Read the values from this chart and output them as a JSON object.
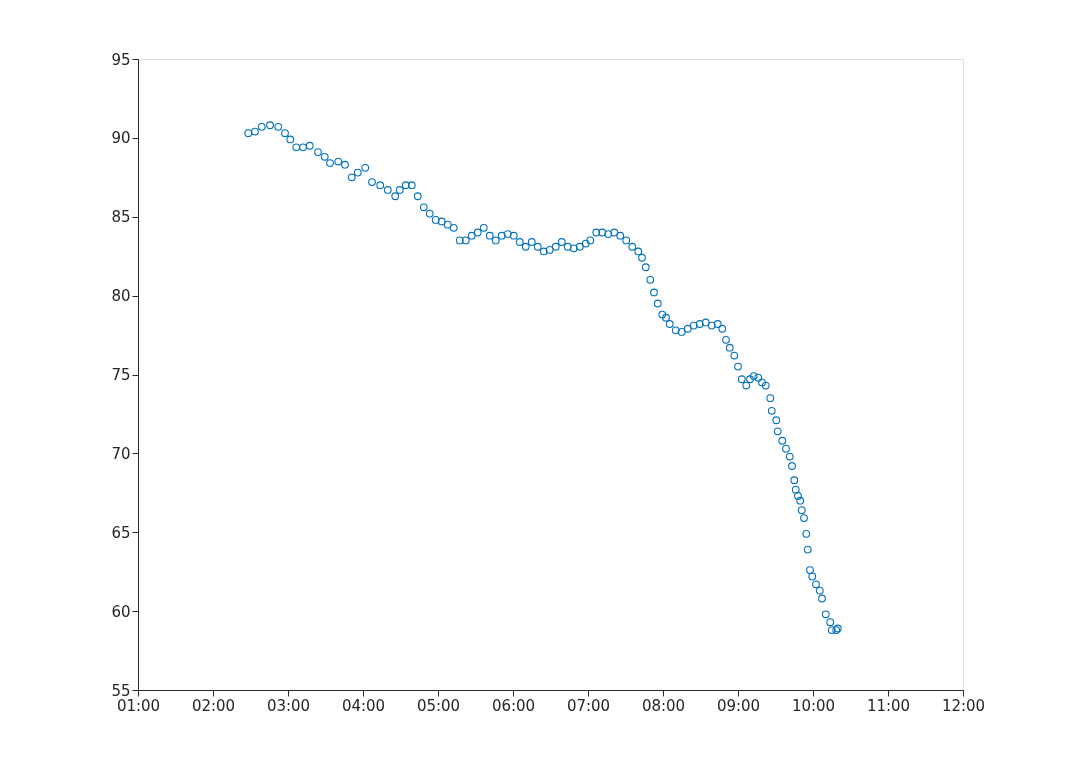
{
  "chart_data": {
    "type": "scatter",
    "marker": "circle",
    "grid": false,
    "xlim": [
      1,
      12
    ],
    "ylim": [
      55,
      95
    ],
    "xticks": [
      {
        "value": 1,
        "label": "01:00"
      },
      {
        "value": 2,
        "label": "02:00"
      },
      {
        "value": 3,
        "label": "03:00"
      },
      {
        "value": 4,
        "label": "04:00"
      },
      {
        "value": 5,
        "label": "05:00"
      },
      {
        "value": 6,
        "label": "06:00"
      },
      {
        "value": 7,
        "label": "07:00"
      },
      {
        "value": 8,
        "label": "08:00"
      },
      {
        "value": 9,
        "label": "09:00"
      },
      {
        "value": 10,
        "label": "10:00"
      },
      {
        "value": 11,
        "label": "11:00"
      },
      {
        "value": 12,
        "label": "12:00"
      }
    ],
    "yticks": [
      55,
      60,
      65,
      70,
      75,
      80,
      85,
      90,
      95
    ],
    "x": [
      2.47,
      2.56,
      2.65,
      2.76,
      2.87,
      2.96,
      3.03,
      3.11,
      3.2,
      3.29,
      3.4,
      3.49,
      3.56,
      3.67,
      3.76,
      3.85,
      3.93,
      4.03,
      4.12,
      4.23,
      4.33,
      4.43,
      4.49,
      4.57,
      4.65,
      4.73,
      4.81,
      4.89,
      4.97,
      5.05,
      5.13,
      5.21,
      5.29,
      5.37,
      5.45,
      5.53,
      5.61,
      5.69,
      5.77,
      5.85,
      5.93,
      6.01,
      6.09,
      6.17,
      6.25,
      6.33,
      6.41,
      6.49,
      6.57,
      6.65,
      6.73,
      6.81,
      6.89,
      6.97,
      7.03,
      7.11,
      7.19,
      7.27,
      7.35,
      7.43,
      7.51,
      7.59,
      7.67,
      7.72,
      7.77,
      7.83,
      7.88,
      7.93,
      7.99,
      8.04,
      8.09,
      8.17,
      8.25,
      8.33,
      8.41,
      8.49,
      8.57,
      8.65,
      8.73,
      8.79,
      8.84,
      8.89,
      8.95,
      9.0,
      9.05,
      9.11,
      9.16,
      9.21,
      9.27,
      9.32,
      9.37,
      9.43,
      9.45,
      9.51,
      9.53,
      9.59,
      9.64,
      9.69,
      9.72,
      9.75,
      9.77,
      9.8,
      9.83,
      9.85,
      9.88,
      9.91,
      9.93,
      9.96,
      9.99,
      10.04,
      10.09,
      10.12,
      10.17,
      10.23,
      10.25,
      10.31,
      10.33
    ],
    "series": [
      {
        "color": "#0072bd",
        "values": [
          90.3,
          90.4,
          90.7,
          90.8,
          90.7,
          90.3,
          89.9,
          89.4,
          89.4,
          89.5,
          89.1,
          88.8,
          88.4,
          88.5,
          88.3,
          87.5,
          87.8,
          88.1,
          87.2,
          87.0,
          86.7,
          86.3,
          86.7,
          87.0,
          87.0,
          86.3,
          85.6,
          85.2,
          84.8,
          84.7,
          84.5,
          84.3,
          83.5,
          83.5,
          83.8,
          84.0,
          84.3,
          83.8,
          83.5,
          83.8,
          83.9,
          83.8,
          83.4,
          83.1,
          83.4,
          83.1,
          82.8,
          82.9,
          83.1,
          83.4,
          83.1,
          83.0,
          83.1,
          83.3,
          83.5,
          84.0,
          84.0,
          83.9,
          84.0,
          83.8,
          83.5,
          83.1,
          82.8,
          82.4,
          81.8,
          81.0,
          80.2,
          79.5,
          78.8,
          78.6,
          78.2,
          77.8,
          77.7,
          77.9,
          78.1,
          78.2,
          78.3,
          78.1,
          78.2,
          77.9,
          77.2,
          76.7,
          76.2,
          75.5,
          74.7,
          74.3,
          74.7,
          74.9,
          74.8,
          74.5,
          74.3,
          73.5,
          72.7,
          72.1,
          71.4,
          70.8,
          70.3,
          69.8,
          69.2,
          68.3,
          67.7,
          67.3,
          67.0,
          66.4,
          65.9,
          64.9,
          63.9,
          62.6,
          62.2,
          61.7,
          61.3,
          60.8,
          59.8,
          59.3,
          58.8,
          58.8,
          58.9
        ]
      }
    ]
  }
}
